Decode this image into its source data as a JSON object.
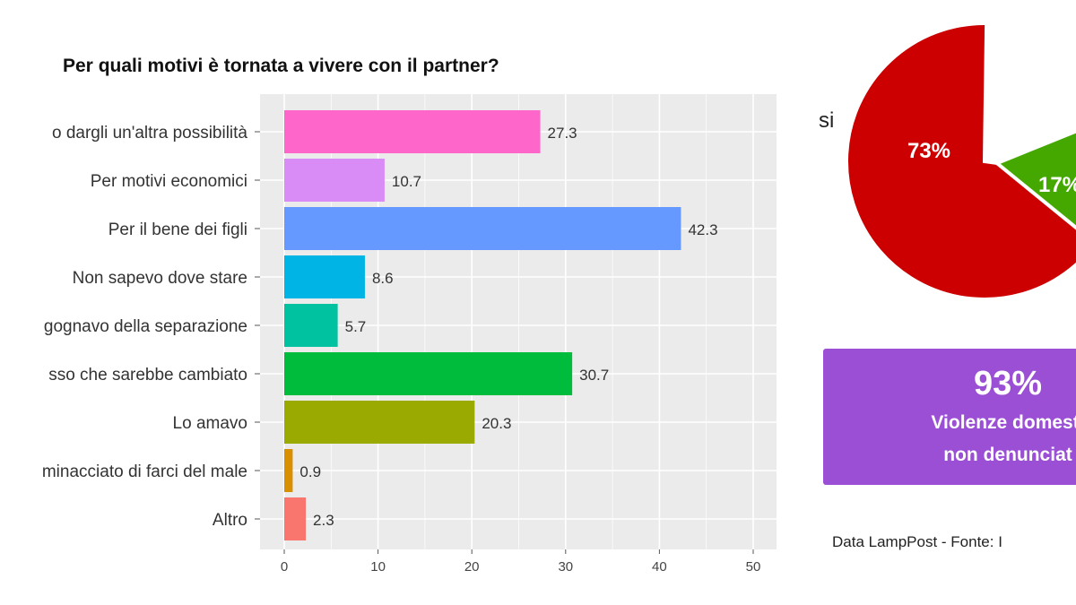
{
  "chart_data": [
    {
      "type": "bar",
      "orientation": "horizontal",
      "title": "Per quali motivi è tornata a vivere con il partner?",
      "categories": [
        "o dargli un'altra possibilità",
        "Per motivi economici",
        "Per il bene dei figli",
        "Non sapevo dove stare",
        "gognavo della separazione",
        "sso che sarebbe cambiato",
        "Lo amavo",
        "minacciato di farci del male",
        "Altro"
      ],
      "values": [
        27.3,
        10.7,
        42.3,
        8.6,
        5.7,
        30.7,
        20.3,
        0.9,
        2.3
      ],
      "value_labels": [
        "27.3",
        "10.7",
        "42.3",
        "8.6",
        "5.7",
        "30.7",
        "20.3",
        "0.9",
        "2.3"
      ],
      "colors": [
        "#ff66c9",
        "#d98cf5",
        "#6699ff",
        "#00b5e5",
        "#00c2a0",
        "#00bc3d",
        "#9aaa00",
        "#d89000",
        "#f8766d"
      ],
      "xlim": [
        0,
        50
      ],
      "xticks": [
        "0",
        "10",
        "20",
        "30",
        "40",
        "50"
      ],
      "grid": true,
      "background": "#ebebeb"
    },
    {
      "type": "pie",
      "slices": [
        {
          "label": "73%",
          "value": 73,
          "color": "#cc0000"
        },
        {
          "label": "17%",
          "value": 17,
          "color": "#44a800"
        }
      ],
      "side_label": "si"
    }
  ],
  "badge": {
    "big": "93%",
    "line1": "Violenze domesti",
    "line2": "non denunciat",
    "color": "#9b4fd4"
  },
  "source": "Data LampPost - Fonte: I"
}
